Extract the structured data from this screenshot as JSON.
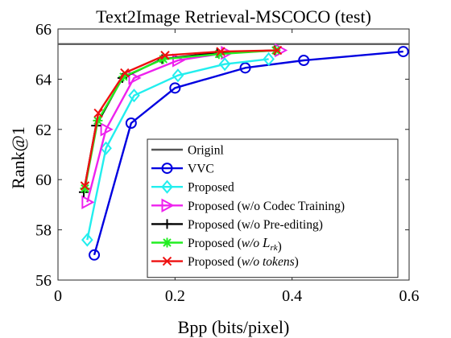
{
  "chart_data": {
    "type": "line",
    "title": "Text2Image Retrieval-MSCOCO (test)",
    "xlabel": "Bpp (bits/pixel)",
    "ylabel": "Rank@1",
    "xlim": [
      0,
      0.6
    ],
    "ylim": [
      56,
      66
    ],
    "xticks": [
      0,
      0.2,
      0.4,
      0.6
    ],
    "xtick_labels": [
      "0",
      "0.2",
      "0.4",
      "0.6"
    ],
    "yticks": [
      56,
      58,
      60,
      62,
      64,
      66
    ],
    "ytick_labels": [
      "56",
      "58",
      "60",
      "62",
      "64",
      "66"
    ],
    "grid": false,
    "legend_position": "bottom-right",
    "series": [
      {
        "name": "Originl",
        "label_parts": [
          {
            "t": "Originl"
          }
        ],
        "color": "#555555",
        "marker": "none",
        "x": [
          0,
          0.6
        ],
        "y": [
          65.4,
          65.4
        ]
      },
      {
        "name": "VVC",
        "label_parts": [
          {
            "t": "VVC"
          }
        ],
        "color": "#0000e0",
        "marker": "circle",
        "x": [
          0.062,
          0.125,
          0.2,
          0.32,
          0.42,
          0.59
        ],
        "y": [
          57.0,
          62.25,
          63.65,
          64.45,
          64.75,
          65.1
        ]
      },
      {
        "name": "Proposed",
        "label_parts": [
          {
            "t": "Proposed"
          }
        ],
        "color": "#22eeee",
        "marker": "diamond",
        "x": [
          0.05,
          0.082,
          0.13,
          0.205,
          0.285,
          0.36
        ],
        "y": [
          57.6,
          61.25,
          63.35,
          64.15,
          64.6,
          64.8
        ]
      },
      {
        "name": "Proposed (w/o Codec Training)",
        "label_parts": [
          {
            "t": "Proposed (w/o Codec Training)"
          }
        ],
        "color": "#ee22ee",
        "marker": "triangle-right",
        "x": [
          0.05,
          0.082,
          0.13,
          0.205,
          0.288,
          0.38
        ],
        "y": [
          59.1,
          62.0,
          64.05,
          64.75,
          65.05,
          65.15
        ]
      },
      {
        "name": "Proposed (w/o Pre-editing)",
        "label_parts": [
          {
            "t": "Proposed (w/o Pre-editing)"
          }
        ],
        "color": "#000000",
        "marker": "plus",
        "x": [
          0.044,
          0.065,
          0.11,
          0.178,
          0.272,
          0.37
        ],
        "y": [
          59.5,
          62.15,
          64.05,
          64.8,
          65.05,
          65.15
        ]
      },
      {
        "name": "Proposed (w/o L_rk)",
        "label_parts": [
          {
            "t": "Proposed ("
          },
          {
            "t": "w/o",
            "i": true
          },
          {
            "t": " "
          },
          {
            "t": "L",
            "i": true,
            "script": true
          },
          {
            "t": "rk",
            "i": true,
            "sub": true
          },
          {
            "t": ")"
          }
        ],
        "color": "#22ee22",
        "marker": "asterisk",
        "x": [
          0.046,
          0.068,
          0.112,
          0.18,
          0.275,
          0.372
        ],
        "y": [
          59.65,
          62.35,
          64.1,
          64.8,
          65.0,
          65.15
        ]
      },
      {
        "name": "Proposed (w/o tokens)",
        "label_parts": [
          {
            "t": "Proposed ("
          },
          {
            "t": "w/o tokens",
            "i": true
          },
          {
            "t": ")"
          }
        ],
        "color": "#ee1111",
        "marker": "x",
        "x": [
          0.046,
          0.069,
          0.114,
          0.183,
          0.278,
          0.375
        ],
        "y": [
          59.75,
          62.65,
          64.25,
          64.95,
          65.1,
          65.15
        ]
      }
    ]
  }
}
